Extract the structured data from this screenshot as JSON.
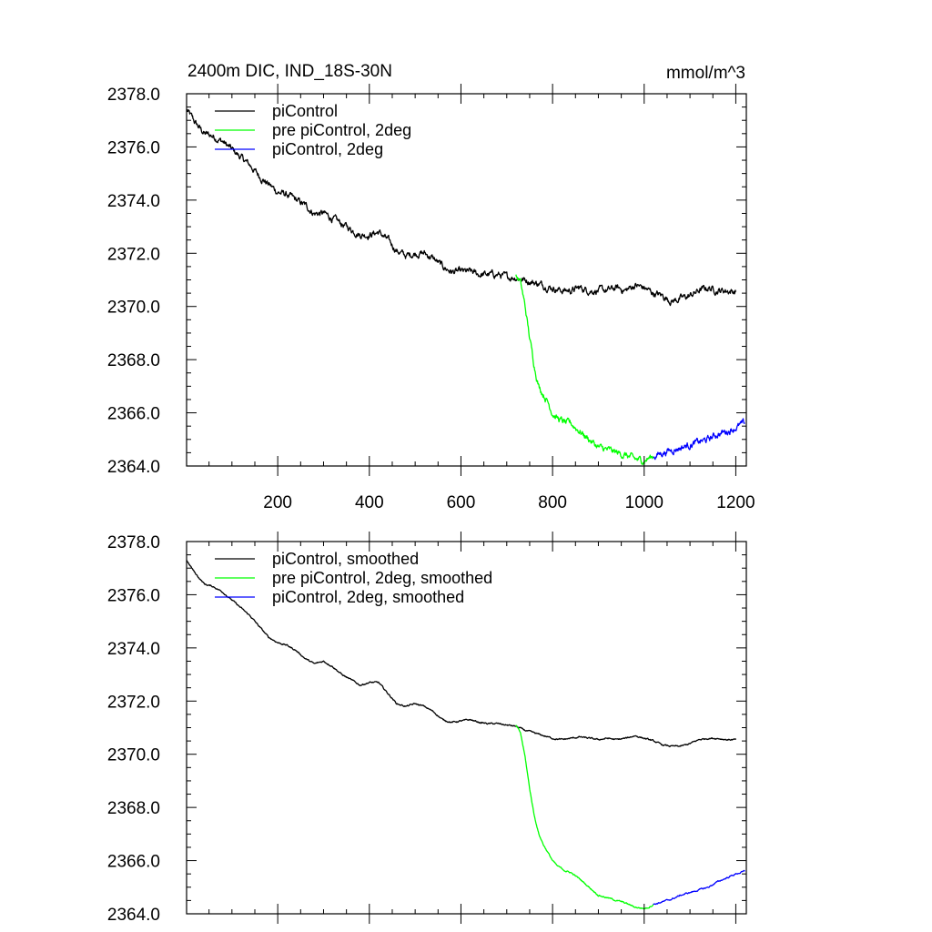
{
  "figure": {
    "title": "2400m DIC, IND_18S-30N",
    "units": "mmol/m^3"
  },
  "chart_data": [
    {
      "type": "line",
      "panel": "top",
      "title": "2400m DIC, IND_18S-30N",
      "units": "mmol/m^3",
      "xlabel": "",
      "ylabel": "",
      "xlim": [
        1,
        1223
      ],
      "ylim": [
        2364.0,
        2378.0
      ],
      "x_ticks": [
        200,
        400,
        600,
        800,
        1000,
        1200
      ],
      "x_tick_labels": [
        "200",
        "400",
        "600",
        "800",
        "1000",
        "1200"
      ],
      "y_ticks": [
        2364.0,
        2366.0,
        2368.0,
        2370.0,
        2372.0,
        2374.0,
        2376.0,
        2378.0
      ],
      "y_tick_labels": [
        "2364.0",
        "2366.0",
        "2368.0",
        "2370.0",
        "2372.0",
        "2374.0",
        "2376.0",
        "2378.0"
      ],
      "grid": false,
      "legend_position": "top-left",
      "noise": 0.09,
      "series": [
        {
          "name": "piControl",
          "color": "#000000",
          "x": [
            1,
            20,
            40,
            60,
            80,
            100,
            120,
            140,
            160,
            180,
            200,
            220,
            240,
            260,
            280,
            300,
            320,
            340,
            360,
            380,
            400,
            420,
            440,
            460,
            480,
            500,
            520,
            540,
            560,
            580,
            600,
            620,
            640,
            660,
            680,
            700,
            720,
            740,
            760,
            780,
            800,
            820,
            840,
            860,
            880,
            900,
            920,
            940,
            960,
            980,
            1000,
            1020,
            1040,
            1060,
            1080,
            1100,
            1120,
            1140,
            1160,
            1180,
            1200
          ],
          "y": [
            2377.4,
            2376.9,
            2376.5,
            2376.4,
            2376.2,
            2375.9,
            2375.6,
            2375.3,
            2374.9,
            2374.6,
            2374.3,
            2374.2,
            2374.0,
            2373.8,
            2373.5,
            2373.5,
            2373.3,
            2373.1,
            2372.9,
            2372.7,
            2372.7,
            2372.8,
            2372.5,
            2372.1,
            2371.9,
            2372.0,
            2372.0,
            2371.8,
            2371.5,
            2371.3,
            2371.3,
            2371.3,
            2371.2,
            2371.2,
            2371.2,
            2371.1,
            2371.1,
            2371.0,
            2370.9,
            2370.8,
            2370.7,
            2370.6,
            2370.6,
            2370.7,
            2370.6,
            2370.6,
            2370.6,
            2370.7,
            2370.6,
            2370.8,
            2370.7,
            2370.5,
            2370.4,
            2370.2,
            2370.3,
            2370.4,
            2370.6,
            2370.7,
            2370.6,
            2370.6,
            2370.55
          ]
        },
        {
          "name": "pre piControl, 2deg",
          "color": "#00ff00",
          "x": [
            720,
            730,
            740,
            750,
            760,
            770,
            780,
            790,
            800,
            810,
            820,
            830,
            840,
            860,
            880,
            900,
            920,
            940,
            960,
            980,
            1000,
            1010,
            1020
          ],
          "y": [
            2371.2,
            2370.9,
            2370.0,
            2368.8,
            2367.8,
            2367.0,
            2366.7,
            2366.4,
            2366.0,
            2365.8,
            2365.7,
            2365.6,
            2365.6,
            2365.3,
            2365.0,
            2364.7,
            2364.6,
            2364.5,
            2364.4,
            2364.25,
            2364.2,
            2364.3,
            2364.35
          ]
        },
        {
          "name": "piControl, 2deg",
          "color": "#0000ff",
          "x": [
            1020,
            1040,
            1060,
            1080,
            1100,
            1120,
            1140,
            1160,
            1180,
            1200,
            1220
          ],
          "y": [
            2364.35,
            2364.5,
            2364.6,
            2364.7,
            2364.8,
            2364.9,
            2365.0,
            2365.2,
            2365.3,
            2365.45,
            2365.6
          ]
        }
      ]
    },
    {
      "type": "line",
      "panel": "bottom",
      "title": "",
      "xlabel": "",
      "ylabel": "",
      "xlim": [
        1,
        1223
      ],
      "ylim": [
        2364.0,
        2378.0
      ],
      "x_ticks": [
        200,
        400,
        600,
        800,
        1000,
        1200
      ],
      "x_tick_labels": [],
      "y_ticks": [
        2364.0,
        2366.0,
        2368.0,
        2370.0,
        2372.0,
        2374.0,
        2376.0,
        2378.0
      ],
      "y_tick_labels": [
        "2364.0",
        "2366.0",
        "2368.0",
        "2370.0",
        "2372.0",
        "2374.0",
        "2376.0",
        "2378.0"
      ],
      "grid": false,
      "legend_position": "top-left",
      "noise": 0.02,
      "series": [
        {
          "name": "piControl, smoothed",
          "color": "#000000",
          "x": [
            1,
            20,
            40,
            60,
            80,
            100,
            120,
            140,
            160,
            180,
            200,
            220,
            240,
            260,
            280,
            300,
            320,
            340,
            360,
            380,
            400,
            420,
            440,
            460,
            480,
            500,
            520,
            540,
            560,
            580,
            600,
            620,
            640,
            660,
            680,
            700,
            720,
            740,
            760,
            780,
            800,
            820,
            840,
            860,
            880,
            900,
            920,
            940,
            960,
            980,
            1000,
            1020,
            1040,
            1060,
            1080,
            1100,
            1120,
            1140,
            1160,
            1180,
            1200
          ],
          "y": [
            2377.3,
            2376.8,
            2376.4,
            2376.3,
            2376.1,
            2375.8,
            2375.5,
            2375.2,
            2374.8,
            2374.4,
            2374.2,
            2374.1,
            2373.9,
            2373.6,
            2373.4,
            2373.5,
            2373.3,
            2373.0,
            2372.8,
            2372.6,
            2372.7,
            2372.7,
            2372.3,
            2371.9,
            2371.8,
            2371.9,
            2371.8,
            2371.6,
            2371.3,
            2371.2,
            2371.25,
            2371.3,
            2371.2,
            2371.15,
            2371.15,
            2371.1,
            2371.05,
            2370.9,
            2370.8,
            2370.7,
            2370.6,
            2370.55,
            2370.6,
            2370.65,
            2370.6,
            2370.55,
            2370.6,
            2370.55,
            2370.6,
            2370.7,
            2370.6,
            2370.5,
            2370.35,
            2370.3,
            2370.3,
            2370.4,
            2370.55,
            2370.6,
            2370.6,
            2370.55,
            2370.55
          ]
        },
        {
          "name": "pre piControl, 2deg, smoothed",
          "color": "#00ff00",
          "x": [
            720,
            730,
            740,
            750,
            760,
            770,
            780,
            790,
            800,
            810,
            820,
            830,
            840,
            860,
            880,
            900,
            920,
            940,
            960,
            980,
            1000,
            1010,
            1020
          ],
          "y": [
            2371.1,
            2370.8,
            2369.9,
            2368.7,
            2367.7,
            2367.0,
            2366.6,
            2366.3,
            2366.0,
            2365.8,
            2365.7,
            2365.6,
            2365.55,
            2365.3,
            2365.0,
            2364.7,
            2364.6,
            2364.5,
            2364.4,
            2364.25,
            2364.2,
            2364.25,
            2364.35
          ]
        },
        {
          "name": "piControl, 2deg, smoothed",
          "color": "#0000ff",
          "x": [
            1020,
            1040,
            1060,
            1080,
            1100,
            1120,
            1140,
            1160,
            1180,
            1200,
            1220
          ],
          "y": [
            2364.35,
            2364.45,
            2364.55,
            2364.7,
            2364.8,
            2364.9,
            2365.0,
            2365.2,
            2365.35,
            2365.5,
            2365.6
          ]
        }
      ]
    }
  ]
}
